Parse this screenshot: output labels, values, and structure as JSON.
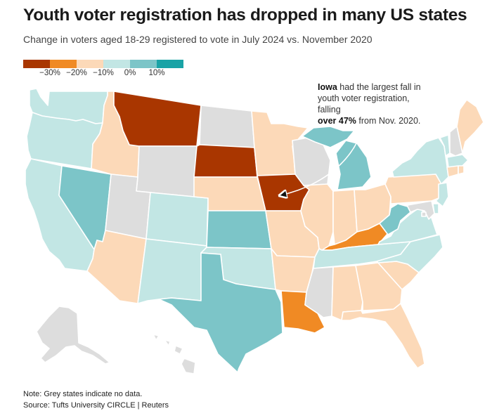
{
  "title": "Youth voter registration has dropped in many US states",
  "subtitle": "Change in voters aged 18-29 registered to vote in July 2024 vs. November 2020",
  "legend": {
    "swatches": [
      "#a93600",
      "#f08a24",
      "#fcd9b8",
      "#c2e6e4",
      "#7cc5c8",
      "#19a3a6"
    ],
    "ticks": [
      "−30%",
      "−20%",
      "−10%",
      "0%",
      "10%"
    ]
  },
  "annotation": {
    "state": "Iowa",
    "line1_rest": " had the largest fall in",
    "line2": "youth voter registration, falling",
    "emphasis": "over 47%",
    "line3_rest": " from Nov. 2020."
  },
  "colors": {
    "dark": "#a93600",
    "orange": "#f08a24",
    "peach": "#fcd9b8",
    "light_teal": "#c2e6e4",
    "teal": "#7cc5c8",
    "no_data": "#dddddd"
  },
  "states": {
    "WA": "light_teal",
    "OR": "light_teal",
    "CA": "light_teal",
    "NV": "teal",
    "ID": "peach",
    "MT": "dark",
    "WY": "no_data",
    "UT": "no_data",
    "AZ": "peach",
    "CO": "light_teal",
    "NM": "light_teal",
    "ND": "no_data",
    "SD": "dark",
    "NE": "peach",
    "KS": "teal",
    "OK": "light_teal",
    "TX": "teal",
    "MN": "peach",
    "IA": "dark",
    "MO": "peach",
    "AR": "peach",
    "LA": "orange",
    "WI": "no_data",
    "IL": "peach",
    "MI": "teal",
    "IN": "peach",
    "OH": "peach",
    "KY": "orange",
    "TN": "light_teal",
    "MS": "no_data",
    "AL": "peach",
    "GA": "peach",
    "FL": "peach",
    "SC": "peach",
    "NC": "light_teal",
    "VA": "light_teal",
    "WV": "teal",
    "PA": "peach",
    "NY": "light_teal",
    "VT": "light_teal",
    "NH": "no_data",
    "ME": "peach",
    "MA": "light_teal",
    "CT": "peach",
    "RI": "peach",
    "NJ": "light_teal",
    "DE": "light_teal",
    "MD": "no_data",
    "DC": "no_data",
    "AK": "no_data",
    "HI": "no_data"
  },
  "notes": {
    "note": "Note: Grey states indicate no data.",
    "source": "Source: Tufts University CIRCLE | Reuters"
  }
}
